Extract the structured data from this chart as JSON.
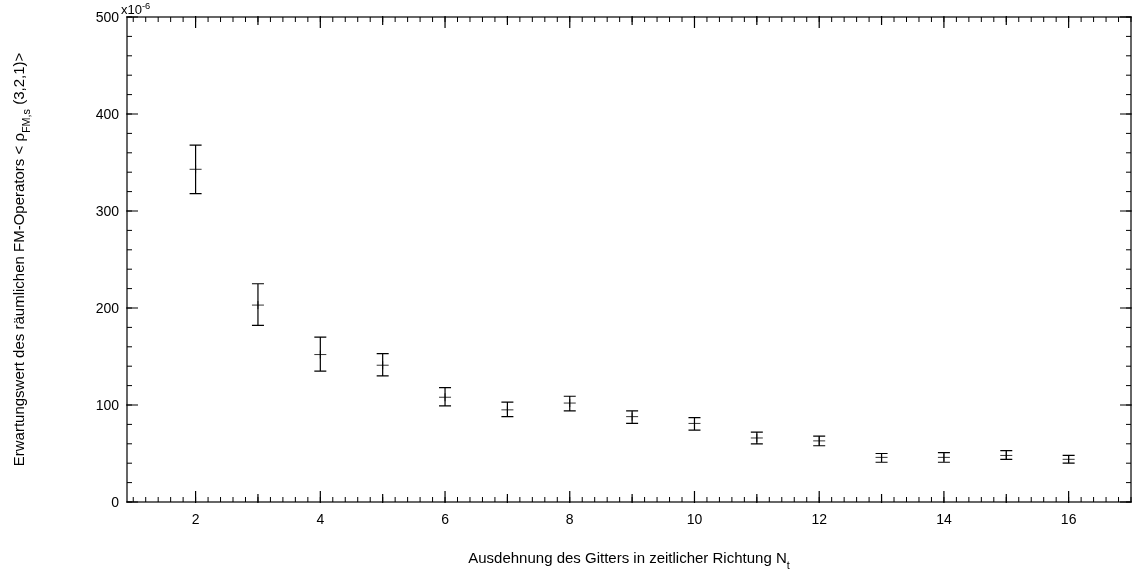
{
  "chart_data": {
    "type": "scatter",
    "xlabel": "Ausdehnung des Gitters in zeitlicher Richtung N$_{t}$",
    "ylabel": "Erwartungswert des räumlichen FM-Operators < ρ$_{FM,s}$ (3,2,1)>",
    "x": [
      2,
      3,
      4,
      5,
      6,
      7,
      8,
      9,
      10,
      11,
      12,
      13,
      14,
      15,
      16
    ],
    "series": [
      {
        "color": "#000000",
        "values": [
          343,
          203,
          152,
          141,
          108,
          95,
          102,
          88,
          81,
          66,
          63,
          46,
          46,
          48,
          44
        ],
        "errors": [
          [
            318,
            368
          ],
          [
            182,
            225
          ],
          [
            135,
            170
          ],
          [
            130,
            153
          ],
          [
            99,
            118
          ],
          [
            88,
            103
          ],
          [
            94,
            109
          ],
          [
            81,
            94
          ],
          [
            74,
            87
          ],
          [
            60,
            72
          ],
          [
            58,
            68
          ],
          [
            41,
            50
          ],
          [
            41,
            51
          ],
          [
            44,
            53
          ],
          [
            40,
            48
          ]
        ]
      }
    ],
    "xlim": [
      0.9,
      17
    ],
    "ylim": [
      0,
      500
    ],
    "xticks": [
      2,
      {
        "value": 3,
        "label": null
      },
      4,
      {
        "value": 5,
        "label": null
      },
      6,
      {
        "value": 7,
        "label": null
      },
      8,
      {
        "value": 9,
        "label": null
      },
      10,
      {
        "value": 11,
        "label": null
      },
      12,
      {
        "value": 13,
        "label": null
      },
      14,
      {
        "value": 15,
        "label": null
      },
      16
    ],
    "yticks": [
      0,
      100,
      200,
      300,
      400,
      500
    ],
    "annotations": [
      "x10$^{-6}$"
    ],
    "marker": "cross",
    "grid": false
  }
}
